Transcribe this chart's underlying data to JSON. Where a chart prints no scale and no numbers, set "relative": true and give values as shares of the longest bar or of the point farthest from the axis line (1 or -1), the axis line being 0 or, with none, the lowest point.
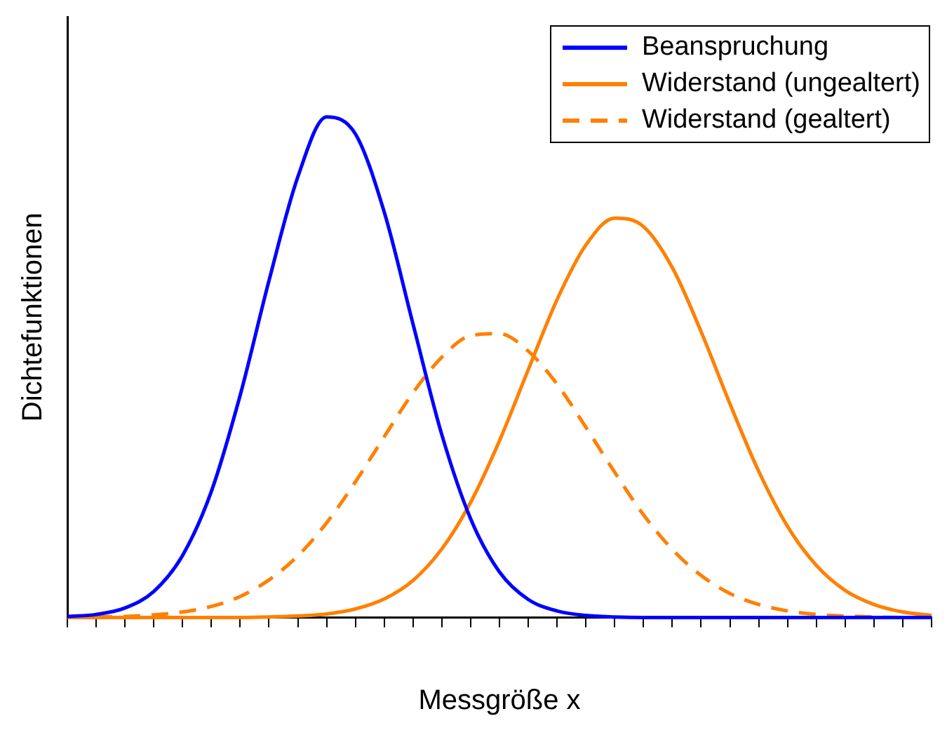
{
  "chart_data": {
    "type": "line",
    "relative": true,
    "xlabel": "Messgröße x",
    "ylabel": "Dichtefunktionen",
    "legend": "top right",
    "marker": "none",
    "grid": false,
    "categories": [
      null,
      null,
      null,
      null,
      null,
      null,
      null,
      null,
      null,
      null,
      null,
      null,
      null,
      null,
      null,
      null,
      null,
      null,
      null,
      null,
      null,
      null,
      null,
      null,
      null,
      null,
      null,
      null,
      null,
      null,
      null
    ],
    "series": [
      {
        "name": "Beanspruchung",
        "color": "#0000ff",
        "line_style": "solid",
        "values": [
          0.002,
          0.006,
          0.019,
          0.052,
          0.124,
          0.252,
          0.444,
          0.673,
          0.88,
          1,
          0.966,
          0.81,
          0.586,
          0.365,
          0.197,
          0.091,
          0.036,
          0.013,
          0.004,
          0.001,
          0,
          0,
          0,
          0,
          0,
          0,
          0,
          0,
          0,
          0,
          0
        ]
      },
      {
        "name": "Widerstand (ungealtert)",
        "color": "#ff8000",
        "line_style": "solid",
        "values": [
          0,
          0,
          0,
          0,
          0,
          0,
          0,
          0.001,
          0.003,
          0.007,
          0.017,
          0.037,
          0.074,
          0.137,
          0.23,
          0.353,
          0.495,
          0.635,
          0.744,
          0.798,
          0.781,
          0.699,
          0.571,
          0.427,
          0.292,
          0.182,
          0.104,
          0.054,
          0.026,
          0.011,
          0.004
        ]
      },
      {
        "name": "Widerstand (gealtert)",
        "color": "#ff8000",
        "line_style": "dashed",
        "values": [
          0,
          0.001,
          0.002,
          0.005,
          0.011,
          0.022,
          0.042,
          0.075,
          0.123,
          0.189,
          0.271,
          0.361,
          0.449,
          0.52,
          0.563,
          0.567,
          0.532,
          0.466,
          0.38,
          0.29,
          0.205,
          0.136,
          0.084,
          0.048,
          0.026,
          0.013,
          0.006,
          0.003,
          0.001,
          0,
          0
        ]
      }
    ]
  }
}
